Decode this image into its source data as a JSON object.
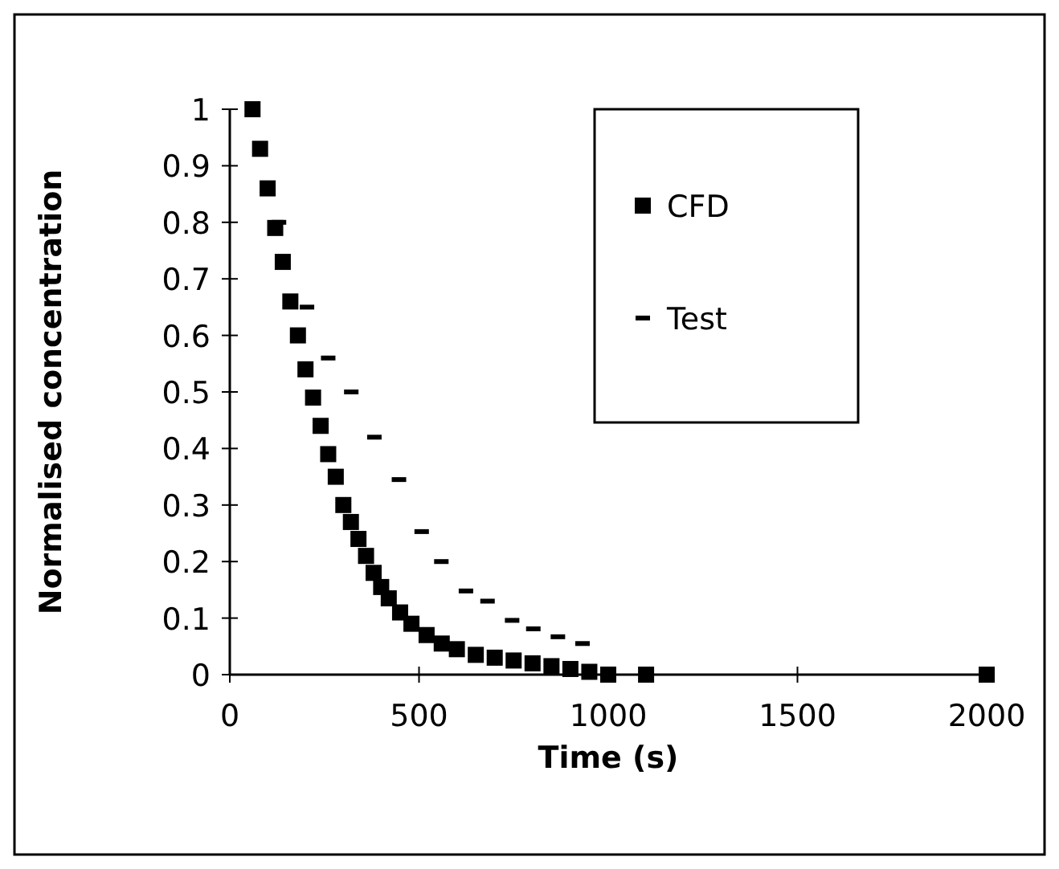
{
  "chart_data": {
    "type": "scatter",
    "xlabel": "Time (s)",
    "ylabel": "Normalised concentration",
    "xlim": [
      0,
      2000
    ],
    "xticks": [
      0,
      500,
      1000,
      1500,
      2000
    ],
    "ylim": [
      0,
      1
    ],
    "yticks": [
      0,
      0.1,
      0.2,
      0.3,
      0.4,
      0.5,
      0.6,
      0.7,
      0.8,
      0.9,
      1
    ],
    "grid": false,
    "legend": "top right",
    "series": [
      {
        "name": "CFD",
        "color": "#000000",
        "marker": "square",
        "x": [
          60,
          80,
          100,
          120,
          140,
          160,
          180,
          200,
          220,
          240,
          260,
          280,
          300,
          320,
          340,
          360,
          380,
          400,
          420,
          450,
          480,
          520,
          560,
          600,
          650,
          700,
          750,
          800,
          850,
          900,
          950,
          1000,
          1100,
          2000
        ],
        "values": [
          1,
          0.93,
          0.86,
          0.79,
          0.73,
          0.66,
          0.6,
          0.54,
          0.49,
          0.44,
          0.39,
          0.35,
          0.3,
          0.27,
          0.24,
          0.21,
          0.18,
          0.155,
          0.135,
          0.11,
          0.09,
          0.07,
          0.055,
          0.045,
          0.035,
          0.03,
          0.025,
          0.02,
          0.015,
          0.01,
          0.005,
          0,
          0,
          0
        ]
      },
      {
        "name": "Test",
        "color": "#000000",
        "x": [
          130,
          204,
          260,
          321,
          382,
          447,
          507,
          559,
          624,
          681,
          746,
          802,
          867,
          932,
          1000
        ],
        "values": [
          0.8,
          0.65,
          0.56,
          0.5,
          0.42,
          0.345,
          0.253,
          0.2,
          0.148,
          0.13,
          0.096,
          0.081,
          0.067,
          0.055,
          0.01
        ]
      }
    ]
  }
}
